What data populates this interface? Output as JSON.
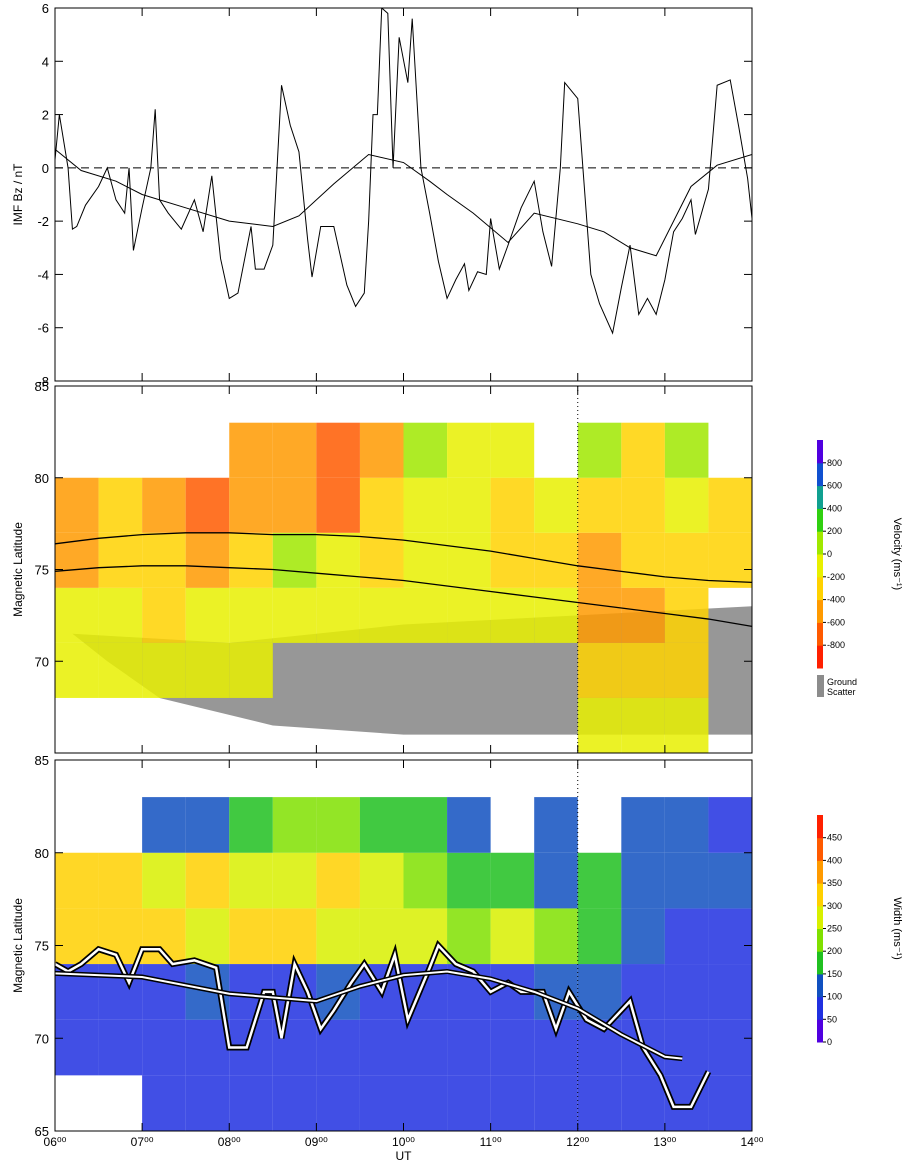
{
  "chart_data": [
    {
      "type": "line",
      "ylabel": "IMF Bz / nT",
      "ylim": [
        -8,
        6
      ],
      "yticks": [
        -8,
        -6,
        -4,
        -2,
        0,
        2,
        4,
        6
      ],
      "hline": 0,
      "series": [
        {
          "color": "#000000",
          "x": [
            6.0,
            6.05,
            6.15,
            6.2,
            6.25,
            6.35,
            6.5,
            6.6,
            6.7,
            6.8,
            6.85,
            6.9,
            7.0,
            7.1,
            7.15,
            7.2,
            7.3,
            7.45,
            7.6,
            7.7,
            7.8,
            7.9,
            8.0,
            8.1,
            8.25,
            8.3,
            8.4,
            8.5,
            8.6,
            8.7,
            8.8,
            8.9,
            8.95,
            9.05,
            9.2,
            9.35,
            9.45,
            9.55,
            9.6,
            9.65,
            9.7,
            9.75,
            9.82,
            9.88,
            9.95,
            10.05,
            10.1,
            10.2,
            10.3,
            10.4,
            10.5,
            10.6,
            10.7,
            10.75,
            10.85,
            10.95,
            11.0,
            11.1,
            11.2,
            11.35,
            11.5,
            11.6,
            11.7,
            11.8,
            11.85,
            12.0,
            12.15,
            12.25,
            12.4,
            12.5,
            12.6,
            12.7,
            12.8,
            12.9,
            13.0,
            13.1,
            13.2,
            13.3,
            13.35,
            13.5,
            13.6,
            13.75,
            13.85,
            13.95,
            14.0
          ],
          "values": [
            0.3,
            2.0,
            0.0,
            -2.3,
            -2.2,
            -1.4,
            -0.7,
            0.0,
            -1.2,
            -1.7,
            0.0,
            -3.1,
            -1.5,
            0.0,
            2.2,
            -1.2,
            -1.7,
            -2.3,
            -1.2,
            -2.4,
            -0.3,
            -3.4,
            -4.9,
            -4.7,
            -2.2,
            -3.8,
            -3.8,
            -2.9,
            3.1,
            1.6,
            0.6,
            -2.7,
            -4.1,
            -2.2,
            -2.2,
            -4.4,
            -5.2,
            -4.7,
            -2.0,
            2.0,
            2.0,
            6.0,
            5.8,
            0.0,
            4.9,
            3.2,
            5.6,
            0.0,
            -1.7,
            -3.5,
            -4.9,
            -4.2,
            -3.6,
            -4.6,
            -3.9,
            -4.0,
            -1.9,
            -3.8,
            -2.9,
            -1.5,
            -0.5,
            -2.4,
            -3.7,
            0.0,
            3.2,
            2.6,
            -4.0,
            -5.1,
            -6.2,
            -4.5,
            -2.9,
            -5.5,
            -4.9,
            -5.5,
            -4.2,
            -2.4,
            -1.9,
            -1.2,
            -2.5,
            -0.8,
            3.1,
            3.3,
            1.5,
            -0.4,
            -1.9
          ]
        },
        {
          "color": "#000000",
          "x": [
            6.0,
            6.3,
            6.7,
            7.0,
            7.5,
            8.0,
            8.5,
            8.8,
            9.2,
            9.6,
            10.0,
            10.3,
            10.5,
            10.8,
            11.2,
            11.5,
            12.0,
            12.3,
            12.6,
            12.9,
            13.3,
            13.6,
            14.0
          ],
          "values": [
            0.7,
            -0.1,
            -0.5,
            -1.0,
            -1.5,
            -2.0,
            -2.2,
            -1.8,
            -0.6,
            0.5,
            0.2,
            -0.5,
            -1.0,
            -1.7,
            -2.8,
            -1.7,
            -2.1,
            -2.4,
            -3.0,
            -3.3,
            -0.7,
            0.1,
            0.5
          ]
        }
      ]
    },
    {
      "type": "heatmap",
      "ylabel": "Magnetic Latitude",
      "ylim": [
        65,
        85
      ],
      "yticks": [
        70,
        75,
        80,
        85
      ],
      "vline": 12,
      "xbins": [
        6,
        6.5,
        7,
        7.5,
        8,
        8.5,
        9,
        9.5,
        10,
        10.5,
        11,
        11.5,
        12,
        12.5,
        13,
        13.5,
        14
      ],
      "ybins": [
        65,
        68,
        71,
        74,
        77,
        80,
        83
      ],
      "z": [
        [
          null,
          null,
          null,
          null,
          null,
          null,
          null,
          null,
          null,
          null,
          null,
          null,
          -200,
          -200,
          -200,
          null
        ],
        [
          -200,
          -200,
          -200,
          -200,
          -200,
          null,
          null,
          null,
          null,
          null,
          null,
          null,
          -300,
          -300,
          -300,
          null
        ],
        [
          -200,
          -200,
          -300,
          -200,
          -200,
          -100,
          -100,
          -200,
          -100,
          -100,
          -200,
          -200,
          -500,
          -500,
          -300,
          null
        ],
        [
          -500,
          -300,
          -400,
          -500,
          -300,
          0,
          -200,
          -300,
          -100,
          -200,
          -300,
          -400,
          -500,
          -400,
          -300,
          -300
        ],
        [
          -500,
          -400,
          -500,
          -700,
          -500,
          -600,
          -700,
          -400,
          -100,
          -200,
          -300,
          -200,
          -300,
          -300,
          -200,
          -300
        ],
        [
          null,
          null,
          null,
          null,
          -500,
          -600,
          -700,
          -500,
          0,
          -100,
          -100,
          null,
          100,
          -300,
          0,
          null
        ]
      ],
      "colorbar": {
        "label": "Velocity (ms⁻¹)",
        "range": [
          -1000,
          1000
        ],
        "ticks": [
          -800,
          -600,
          -400,
          -200,
          0,
          200,
          400,
          600,
          800
        ],
        "colors": [
          "#ff2000",
          "#ff5a00",
          "#ff9a00",
          "#ffd200",
          "#e8f000",
          "#a0e800",
          "#30d010",
          "#10a090",
          "#1050d0",
          "#5000e0"
        ],
        "ground_scatter": {
          "label": [
            "Ground",
            "Scatter"
          ],
          "color": "#8c8c8c"
        }
      },
      "series": [
        {
          "color": "#000000",
          "x": [
            6,
            6.5,
            7,
            7.5,
            8,
            8.5,
            9,
            9.5,
            10,
            10.5,
            11,
            11.5,
            12,
            12.5,
            13,
            13.5,
            14
          ],
          "values": [
            76.4,
            76.7,
            76.9,
            77.0,
            77.0,
            76.9,
            76.9,
            76.8,
            76.6,
            76.3,
            76.0,
            75.6,
            75.2,
            74.9,
            74.6,
            74.4,
            74.3
          ]
        },
        {
          "color": "#000000",
          "x": [
            6,
            6.5,
            7,
            7.5,
            8,
            8.5,
            9,
            9.5,
            10,
            10.5,
            11,
            11.5,
            12,
            12.5,
            13,
            13.5,
            14
          ],
          "values": [
            74.9,
            75.1,
            75.2,
            75.2,
            75.1,
            75.0,
            74.8,
            74.6,
            74.4,
            74.1,
            73.8,
            73.5,
            73.2,
            72.9,
            72.6,
            72.3,
            71.9
          ]
        }
      ]
    },
    {
      "type": "heatmap",
      "ylabel": "Magnetic Latitude",
      "xlabel": "UT",
      "ylim": [
        65,
        85
      ],
      "yticks": [
        65,
        70,
        75,
        80,
        85
      ],
      "vline": 12,
      "outline": true,
      "xlim": [
        6,
        14
      ],
      "xticks": [
        {
          "value": 6,
          "label": "06⁰⁰"
        },
        {
          "value": 7,
          "label": "07⁰⁰"
        },
        {
          "value": 8,
          "label": "08⁰⁰"
        },
        {
          "value": 9,
          "label": "09⁰⁰"
        },
        {
          "value": 10,
          "label": "10⁰⁰"
        },
        {
          "value": 11,
          "label": "11⁰⁰"
        },
        {
          "value": 12,
          "label": "12⁰⁰"
        },
        {
          "value": 13,
          "label": "13⁰⁰"
        },
        {
          "value": 14,
          "label": "14⁰⁰"
        }
      ],
      "xbins": [
        6,
        6.5,
        7,
        7.5,
        8,
        8.5,
        9,
        9.5,
        10,
        10.5,
        11,
        11.5,
        12,
        12.5,
        13,
        13.5,
        14
      ],
      "ybins": [
        65,
        68,
        71,
        74,
        77,
        80,
        83
      ],
      "z": [
        [
          null,
          null,
          50,
          50,
          50,
          50,
          50,
          50,
          50,
          50,
          50,
          50,
          50,
          50,
          50,
          50
        ],
        [
          50,
          50,
          50,
          50,
          50,
          50,
          50,
          50,
          50,
          50,
          50,
          50,
          50,
          50,
          50,
          50
        ],
        [
          50,
          50,
          50,
          100,
          50,
          50,
          100,
          50,
          50,
          50,
          50,
          100,
          100,
          50,
          50,
          50
        ],
        [
          300,
          300,
          300,
          250,
          300,
          300,
          250,
          250,
          250,
          200,
          250,
          200,
          150,
          100,
          50,
          50
        ],
        [
          300,
          300,
          250,
          300,
          250,
          250,
          300,
          250,
          200,
          150,
          150,
          100,
          150,
          100,
          100,
          100
        ],
        [
          null,
          null,
          100,
          100,
          150,
          200,
          200,
          150,
          150,
          100,
          null,
          100,
          null,
          100,
          100,
          50
        ]
      ],
      "colorbar": {
        "label": "Width (ms⁻¹)",
        "range": [
          0,
          500
        ],
        "ticks": [
          0,
          50,
          100,
          150,
          200,
          250,
          300,
          350,
          400,
          450
        ],
        "colors": [
          "#5000e0",
          "#2030e0",
          "#1050c0",
          "#20c020",
          "#80e000",
          "#d8f000",
          "#ffd000",
          "#ff9a00",
          "#ff5a00",
          "#ff2000"
        ]
      },
      "series": [
        {
          "color": "#000000",
          "x": [
            6.0,
            6.15,
            6.3,
            6.5,
            6.7,
            6.85,
            7.0,
            7.2,
            7.35,
            7.6,
            7.85,
            8.0,
            8.2,
            8.4,
            8.5,
            8.6,
            8.75,
            8.9,
            9.05,
            9.2,
            9.4,
            9.55,
            9.75,
            9.9,
            10.05,
            10.3,
            10.4,
            10.6,
            10.8,
            11.0,
            11.2,
            11.35,
            11.6,
            11.75,
            11.9,
            12.1,
            12.3,
            12.6,
            12.75,
            12.95,
            13.1,
            13.3,
            13.5
          ],
          "values": [
            74.0,
            73.6,
            74.0,
            74.8,
            74.5,
            73.0,
            74.8,
            74.8,
            74.0,
            74.2,
            73.8,
            69.5,
            69.5,
            72.5,
            72.5,
            70.0,
            74.0,
            72.5,
            70.5,
            71.5,
            73.0,
            74.0,
            72.5,
            74.5,
            71.0,
            73.8,
            75.0,
            74.0,
            73.6,
            72.5,
            73.0,
            72.5,
            72.5,
            70.5,
            72.5,
            71.0,
            70.5,
            72.0,
            69.5,
            68.0,
            66.3,
            66.3,
            68.2
          ]
        },
        {
          "color": "#000000",
          "x": [
            6.0,
            7.0,
            8.0,
            9.0,
            9.5,
            10.0,
            10.5,
            11.0,
            11.5,
            12.0,
            12.5,
            13.0,
            13.2
          ],
          "values": [
            73.5,
            73.3,
            72.4,
            72.0,
            72.8,
            73.4,
            73.6,
            73.2,
            72.5,
            71.6,
            70.2,
            69.0,
            68.9
          ]
        }
      ]
    }
  ]
}
